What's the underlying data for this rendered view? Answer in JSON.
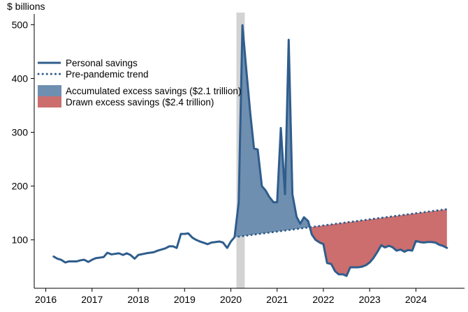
{
  "chart_data": {
    "type": "line",
    "ylabel": "$ billions",
    "ylim": [
      10,
      520
    ],
    "xlim": [
      2015.75,
      2025.05
    ],
    "yticks": [
      100,
      200,
      300,
      400,
      500
    ],
    "xticks": [
      2016,
      2017,
      2018,
      2019,
      2020,
      2021,
      2022,
      2023,
      2024
    ],
    "grid": false,
    "legend_position": "left",
    "recession_band": [
      2020.12,
      2020.3
    ],
    "colors": {
      "savings": "#2f5d8c",
      "trend": "#2f5d8c",
      "accumulated": "#6f8fb0",
      "drawn": "#cc6e6e",
      "recession": "#d3d3d3"
    },
    "legend": [
      {
        "label": "Personal savings",
        "style": "line"
      },
      {
        "label": "Pre-pandemic trend",
        "style": "dotted"
      },
      {
        "label": "Accumulated excess savings ($2.1 trillion)",
        "style": "fill-blue"
      },
      {
        "label": "Drawn excess savings ($2.4 trillion)",
        "style": "fill-red"
      }
    ],
    "series": [
      {
        "name": "Personal savings",
        "points": [
          [
            2016.17,
            69
          ],
          [
            2016.25,
            65
          ],
          [
            2016.33,
            63
          ],
          [
            2016.42,
            58
          ],
          [
            2016.5,
            60
          ],
          [
            2016.67,
            60
          ],
          [
            2016.75,
            62
          ],
          [
            2016.83,
            63
          ],
          [
            2016.92,
            59
          ],
          [
            2017.0,
            63
          ],
          [
            2017.08,
            66
          ],
          [
            2017.25,
            68
          ],
          [
            2017.33,
            76
          ],
          [
            2017.42,
            73
          ],
          [
            2017.58,
            75
          ],
          [
            2017.67,
            72
          ],
          [
            2017.75,
            75
          ],
          [
            2017.83,
            72
          ],
          [
            2017.92,
            65
          ],
          [
            2018.0,
            72
          ],
          [
            2018.17,
            75
          ],
          [
            2018.33,
            77
          ],
          [
            2018.42,
            80
          ],
          [
            2018.58,
            84
          ],
          [
            2018.67,
            88
          ],
          [
            2018.75,
            88
          ],
          [
            2018.83,
            85
          ],
          [
            2018.92,
            111
          ],
          [
            2019.0,
            111
          ],
          [
            2019.08,
            112
          ],
          [
            2019.17,
            104
          ],
          [
            2019.25,
            100
          ],
          [
            2019.33,
            97
          ],
          [
            2019.5,
            92
          ],
          [
            2019.58,
            95
          ],
          [
            2019.67,
            96
          ],
          [
            2019.75,
            97
          ],
          [
            2019.83,
            95
          ],
          [
            2019.92,
            85
          ],
          [
            2020.0,
            97
          ],
          [
            2020.08,
            105
          ],
          [
            2020.17,
            170
          ],
          [
            2020.25,
            499
          ],
          [
            2020.33,
            420
          ],
          [
            2020.42,
            335
          ],
          [
            2020.5,
            270
          ],
          [
            2020.58,
            268
          ],
          [
            2020.67,
            200
          ],
          [
            2020.75,
            192
          ],
          [
            2020.83,
            180
          ],
          [
            2020.92,
            170
          ],
          [
            2021.0,
            170
          ],
          [
            2021.08,
            308
          ],
          [
            2021.17,
            185
          ],
          [
            2021.25,
            472
          ],
          [
            2021.33,
            185
          ],
          [
            2021.42,
            143
          ],
          [
            2021.5,
            130
          ],
          [
            2021.58,
            142
          ],
          [
            2021.67,
            135
          ],
          [
            2021.75,
            110
          ],
          [
            2021.83,
            100
          ],
          [
            2021.92,
            95
          ],
          [
            2022.0,
            92
          ],
          [
            2022.08,
            57
          ],
          [
            2022.17,
            55
          ],
          [
            2022.25,
            42
          ],
          [
            2022.33,
            36
          ],
          [
            2022.42,
            36
          ],
          [
            2022.5,
            33
          ],
          [
            2022.58,
            49
          ],
          [
            2022.75,
            49
          ],
          [
            2022.83,
            50
          ],
          [
            2022.92,
            53
          ],
          [
            2023.0,
            58
          ],
          [
            2023.08,
            66
          ],
          [
            2023.17,
            78
          ],
          [
            2023.25,
            90
          ],
          [
            2023.33,
            86
          ],
          [
            2023.42,
            89
          ],
          [
            2023.5,
            86
          ],
          [
            2023.58,
            80
          ],
          [
            2023.67,
            82
          ],
          [
            2023.75,
            78
          ],
          [
            2023.83,
            81
          ],
          [
            2023.92,
            80
          ],
          [
            2024.0,
            98
          ],
          [
            2024.08,
            96
          ],
          [
            2024.17,
            95
          ],
          [
            2024.25,
            96
          ],
          [
            2024.33,
            96
          ],
          [
            2024.42,
            95
          ],
          [
            2024.5,
            91
          ],
          [
            2024.58,
            89
          ],
          [
            2024.67,
            85
          ]
        ]
      },
      {
        "name": "Pre-pandemic trend",
        "points": [
          [
            2020.08,
            105
          ],
          [
            2024.67,
            157
          ]
        ]
      }
    ]
  }
}
